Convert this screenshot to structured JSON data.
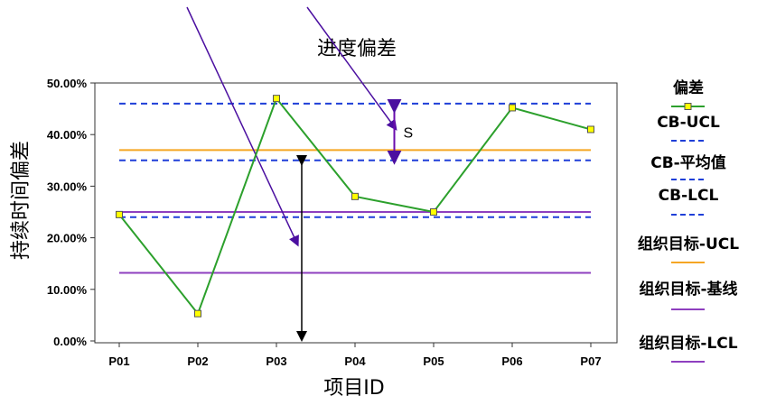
{
  "chart_data": {
    "type": "line",
    "title": "进度偏差",
    "xlabel": "项目ID",
    "ylabel": "持续时间偏差",
    "categories": [
      "P01",
      "P02",
      "P03",
      "P04",
      "P05",
      "P06",
      "P07"
    ],
    "y_ticks": [
      "0.00%",
      "10.00%",
      "20.00%",
      "30.00%",
      "40.00%",
      "50.00%"
    ],
    "ylim": [
      0,
      50
    ],
    "grid": false,
    "legend_position": "right",
    "series": [
      {
        "name": "偏差",
        "kind": "line-markers",
        "color": "#2ca02c",
        "marker_color": "#ffff00",
        "values": [
          24.5,
          5.3,
          47.0,
          28.0,
          25.0,
          45.2,
          41.0
        ]
      },
      {
        "name": "CB-UCL",
        "kind": "hline",
        "style": "dashed",
        "color": "#1f3fd8",
        "value": 46.0
      },
      {
        "name": "CB-平均值",
        "kind": "hline",
        "style": "dashed",
        "color": "#1f3fd8",
        "value": 35.0
      },
      {
        "name": "CB-LCL",
        "kind": "hline",
        "style": "dashed",
        "color": "#1f3fd8",
        "value": 24.0
      },
      {
        "name": "组织目标-UCL",
        "kind": "hline",
        "style": "solid",
        "color": "#f5a623",
        "value": 37.0
      },
      {
        "name": "组织目标-基线",
        "kind": "hline",
        "style": "solid",
        "color": "#8e3fbf",
        "value": 25.0
      },
      {
        "name": "组织目标-LCL",
        "kind": "hline",
        "style": "solid",
        "color": "#8e3fbf",
        "value": 13.2
      }
    ],
    "annotations": [
      {
        "label": "S",
        "type": "double-arrow",
        "x": 4.5,
        "from": 46.0,
        "to": 35.0,
        "color": "#6a0dad"
      }
    ]
  }
}
